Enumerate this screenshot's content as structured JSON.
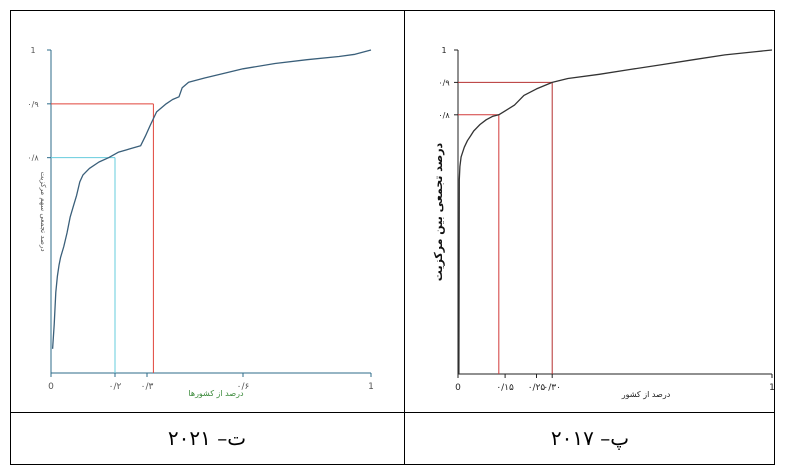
{
  "captions": {
    "left": "ت– ۲۰۲۱",
    "right": "پ– ۲۰۱۷"
  },
  "chart_data": [
    {
      "type": "line",
      "year_caption": "ت– ۲۰۲۱",
      "xlabel": "درصد از کشورها",
      "ylabel": "درصد تجمعی سهم مرکزیت",
      "xlim": [
        0,
        1
      ],
      "ylim": [
        0.4,
        1
      ],
      "x_ticks": [
        {
          "value": 0,
          "label": "0"
        },
        {
          "value": 0.2,
          "label": "۰/۲"
        },
        {
          "value": 0.3,
          "label": "۰/۳"
        },
        {
          "value": 0.6,
          "label": "۰/۶"
        },
        {
          "value": 1,
          "label": "1"
        }
      ],
      "y_ticks": [
        {
          "value": 1,
          "label": "1"
        },
        {
          "value": 0.9,
          "label": "۰/۹"
        },
        {
          "value": 0.8,
          "label": "۰/۸"
        }
      ],
      "reference_lines": [
        {
          "x": 0.2,
          "y": 0.8,
          "color": "#66ccdd"
        },
        {
          "x": 0.32,
          "y": 0.9,
          "color": "#e0443a"
        }
      ],
      "series": [
        {
          "color": "#3a5f7a",
          "points": [
            [
              0.005,
              0.445
            ],
            [
              0.01,
              0.49
            ],
            [
              0.015,
              0.55
            ],
            [
              0.02,
              0.58
            ],
            [
              0.025,
              0.6
            ],
            [
              0.03,
              0.615
            ],
            [
              0.04,
              0.635
            ],
            [
              0.05,
              0.66
            ],
            [
              0.06,
              0.69
            ],
            [
              0.07,
              0.71
            ],
            [
              0.08,
              0.73
            ],
            [
              0.09,
              0.755
            ],
            [
              0.1,
              0.768
            ],
            [
              0.12,
              0.78
            ],
            [
              0.15,
              0.792
            ],
            [
              0.18,
              0.8
            ],
            [
              0.21,
              0.81
            ],
            [
              0.25,
              0.817
            ],
            [
              0.28,
              0.822
            ],
            [
              0.295,
              0.84
            ],
            [
              0.31,
              0.86
            ],
            [
              0.33,
              0.885
            ],
            [
              0.36,
              0.9
            ],
            [
              0.38,
              0.908
            ],
            [
              0.4,
              0.913
            ],
            [
              0.41,
              0.93
            ],
            [
              0.43,
              0.94
            ],
            [
              0.48,
              0.948
            ],
            [
              0.55,
              0.958
            ],
            [
              0.6,
              0.965
            ],
            [
              0.7,
              0.975
            ],
            [
              0.8,
              0.982
            ],
            [
              0.9,
              0.988
            ],
            [
              0.95,
              0.992
            ],
            [
              1.0,
              1.0
            ]
          ]
        }
      ]
    },
    {
      "type": "line",
      "year_caption": "پ– ۲۰۱۷",
      "xlabel": "درصد از کشور",
      "ylabel": "درصد تجمعی بین مرکزیت",
      "xlim": [
        0,
        1
      ],
      "ylim": [
        0,
        1
      ],
      "x_ticks": [
        {
          "value": 0,
          "label": "0"
        },
        {
          "value": 0.15,
          "label": "۰/۱۵"
        },
        {
          "value": 0.25,
          "label": "۰/۲۵"
        },
        {
          "value": 0.3,
          "label": "۰/۳۰"
        },
        {
          "value": 1,
          "label": "1"
        }
      ],
      "y_ticks": [
        {
          "value": 1,
          "label": "1"
        },
        {
          "value": 0.9,
          "label": "۰/۹"
        },
        {
          "value": 0.8,
          "label": "۰/۸"
        }
      ],
      "reference_lines": [
        {
          "x": 0.13,
          "y": 0.8,
          "color": "#d23a3a"
        },
        {
          "x": 0.3,
          "y": 0.9,
          "color": "#b53030"
        }
      ],
      "series": [
        {
          "color": "#333333",
          "points": [
            [
              0.003,
              0.0
            ],
            [
              0.004,
              0.6
            ],
            [
              0.006,
              0.64
            ],
            [
              0.01,
              0.67
            ],
            [
              0.02,
              0.7
            ],
            [
              0.03,
              0.72
            ],
            [
              0.04,
              0.735
            ],
            [
              0.05,
              0.75
            ],
            [
              0.07,
              0.77
            ],
            [
              0.09,
              0.785
            ],
            [
              0.11,
              0.795
            ],
            [
              0.13,
              0.8
            ],
            [
              0.15,
              0.812
            ],
            [
              0.18,
              0.83
            ],
            [
              0.21,
              0.86
            ],
            [
              0.25,
              0.88
            ],
            [
              0.3,
              0.9
            ],
            [
              0.35,
              0.912
            ],
            [
              0.45,
              0.925
            ],
            [
              0.55,
              0.94
            ],
            [
              0.65,
              0.955
            ],
            [
              0.75,
              0.97
            ],
            [
              0.85,
              0.985
            ],
            [
              0.95,
              0.995
            ],
            [
              1.0,
              1.0
            ]
          ]
        }
      ]
    }
  ]
}
